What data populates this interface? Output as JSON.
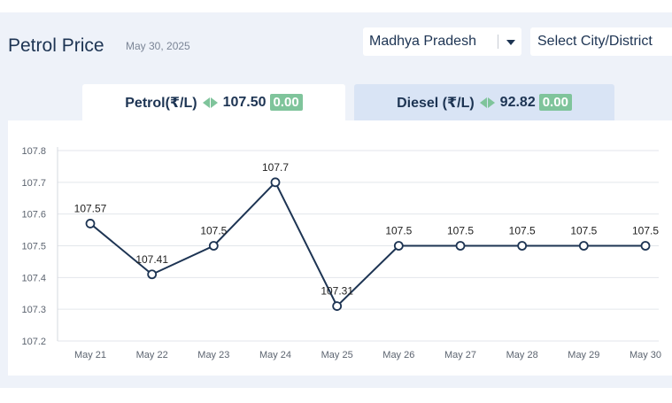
{
  "header": {
    "title": "Petrol Price",
    "date": "May 30, 2025"
  },
  "filters": {
    "state": "Madhya Pradesh",
    "city_placeholder": "Select City/District"
  },
  "tabs": [
    {
      "label": "Petrol(₹/L)",
      "price": "107.50",
      "change": "0.00",
      "active": true
    },
    {
      "label": "Diesel (₹/L)",
      "price": "92.82",
      "change": "0.00",
      "active": false
    }
  ],
  "colors": {
    "line": "#1d3453",
    "change_badge": "#7fc49b",
    "grid": "#e3e6eb"
  },
  "chart_data": {
    "type": "line",
    "title": "",
    "xlabel": "",
    "ylabel": "",
    "categories": [
      "May 21",
      "May 22",
      "May 23",
      "May 24",
      "May 25",
      "May 26",
      "May 27",
      "May 28",
      "May 29",
      "May 30"
    ],
    "series": [
      {
        "values": [
          107.57,
          107.41,
          107.5,
          107.7,
          107.31,
          107.5,
          107.5,
          107.5,
          107.5,
          107.5
        ],
        "labels": [
          "107.57",
          "107.41",
          "107.5",
          "107.7",
          "107.31",
          "107.5",
          "107.5",
          "107.5",
          "107.5",
          "107.5"
        ]
      }
    ],
    "ylim": [
      107.2,
      107.8
    ],
    "yticks": [
      "107.2",
      "107.3",
      "107.4",
      "107.5",
      "107.6",
      "107.7",
      "107.8"
    ],
    "grid": true,
    "legend": "none"
  }
}
